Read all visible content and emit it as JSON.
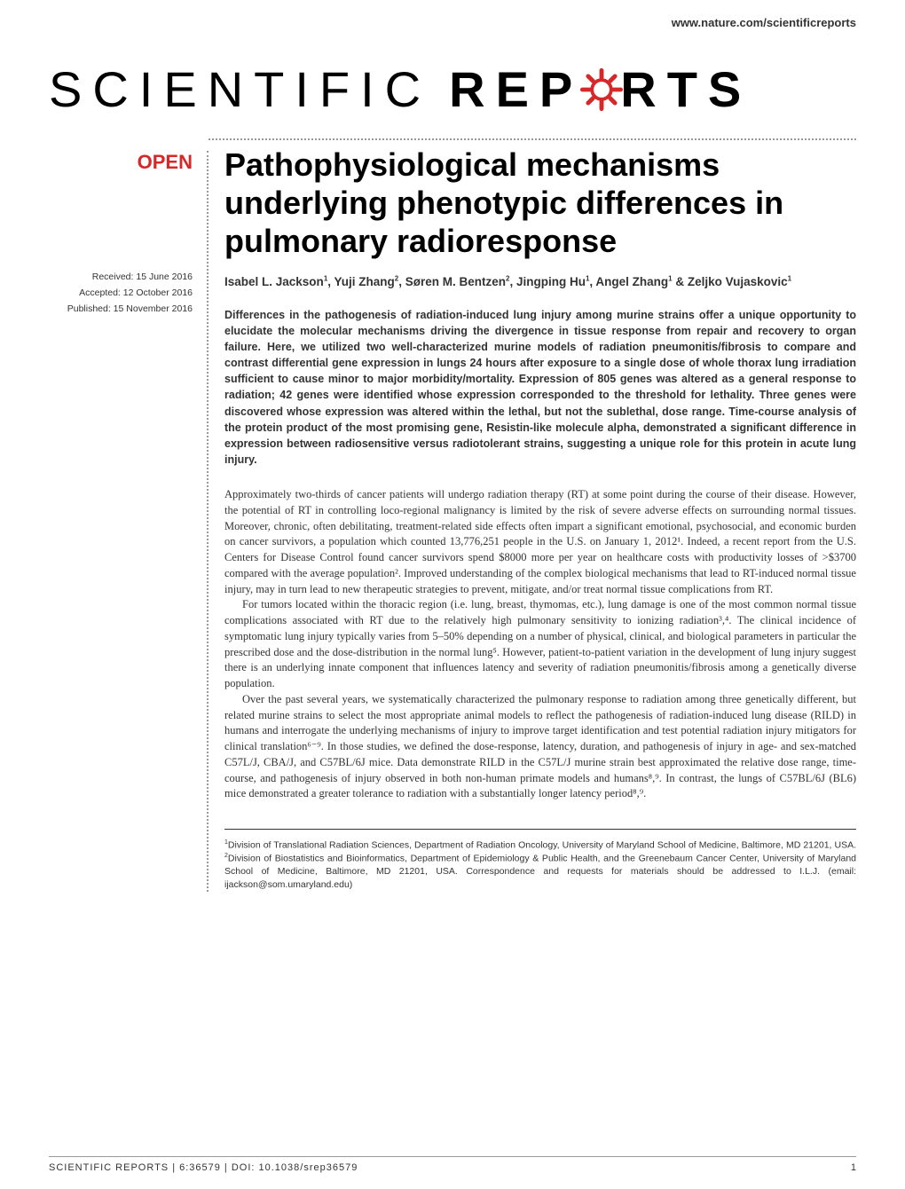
{
  "header": {
    "url": "www.nature.com/scientificreports"
  },
  "logo": {
    "part1": "SCIENTIFIC",
    "part2_before": "REP",
    "part2_after": "RTS",
    "gear_color": "#d62828"
  },
  "badge": {
    "open": "OPEN"
  },
  "dates": {
    "received": "Received: 15 June 2016",
    "accepted": "Accepted: 12 October 2016",
    "published": "Published: 15 November 2016"
  },
  "title": "Pathophysiological mechanisms underlying phenotypic differences in pulmonary radioresponse",
  "authors_html": "Isabel L. Jackson<sup>1</sup>, Yuji Zhang<sup>2</sup>, Søren M. Bentzen<sup>2</sup>, Jingping Hu<sup>1</sup>, Angel Zhang<sup>1</sup> & Zeljko Vujaskovic<sup>1</sup>",
  "abstract": "Differences in the pathogenesis of radiation-induced lung injury among murine strains offer a unique opportunity to elucidate the molecular mechanisms driving the divergence in tissue response from repair and recovery to organ failure. Here, we utilized two well-characterized murine models of radiation pneumonitis/fibrosis to compare and contrast differential gene expression in lungs 24 hours after exposure to a single dose of whole thorax lung irradiation sufficient to cause minor to major morbidity/mortality. Expression of 805 genes was altered as a general response to radiation; 42 genes were identified whose expression corresponded to the threshold for lethality. Three genes were discovered whose expression was altered within the lethal, but not the sublethal, dose range. Time-course analysis of the protein product of the most promising gene, Resistin-like molecule alpha, demonstrated a significant difference in expression between radiosensitive versus radiotolerant strains, suggesting a unique role for this protein in acute lung injury.",
  "body": {
    "p1": "Approximately two-thirds of cancer patients will undergo radiation therapy (RT) at some point during the course of their disease. However, the potential of RT in controlling loco-regional malignancy is limited by the risk of severe adverse effects on surrounding normal tissues. Moreover, chronic, often debilitating, treatment-related side effects often impart a significant emotional, psychosocial, and economic burden on cancer survivors, a population which counted 13,776,251 people in the U.S. on January 1, 2012¹. Indeed, a recent report from the U.S. Centers for Disease Control found cancer survivors spend $8000 more per year on healthcare costs with productivity losses of >$3700 compared with the average population². Improved understanding of the complex biological mechanisms that lead to RT-induced normal tissue injury, may in turn lead to new therapeutic strategies to prevent, mitigate, and/or treat normal tissue complications from RT.",
    "p2": "For tumors located within the thoracic region (i.e. lung, breast, thymomas, etc.), lung damage is one of the most common normal tissue complications associated with RT due to the relatively high pulmonary sensitivity to ionizing radiation³,⁴. The clinical incidence of symptomatic lung injury typically varies from 5–50% depending on a number of physical, clinical, and biological parameters in particular the prescribed dose and the dose-distribution in the normal lung⁵. However, patient-to-patient variation in the development of lung injury suggest there is an underlying innate component that influences latency and severity of radiation pneumonitis/fibrosis among a genetically diverse population.",
    "p3": "Over the past several years, we systematically characterized the pulmonary response to radiation among three genetically different, but related murine strains to select the most appropriate animal models to reflect the pathogenesis of radiation-induced lung disease (RILD) in humans and interrogate the underlying mechanisms of injury to improve target identification and test potential radiation injury mitigators for clinical translation⁶⁻⁹. In those studies, we defined the dose-response, latency, duration, and pathogenesis of injury in age- and sex-matched C57L/J, CBA/J, and C57BL/6J mice. Data demonstrate RILD in the C57L/J murine strain best approximated the relative dose range, time-course, and pathogenesis of injury observed in both non-human primate models and humans⁸,⁹. In contrast, the lungs of C57BL/6J (BL6) mice demonstrated a greater tolerance to radiation with a substantially longer latency period⁸,⁹."
  },
  "affiliations_html": "<sup>1</sup>Division of Translational Radiation Sciences, Department of Radiation Oncology, University of Maryland School of Medicine, Baltimore, MD 21201, USA. <sup>2</sup>Division of Biostatistics and Bioinformatics, Department of Epidemiology & Public Health, and the Greenebaum Cancer Center, University of Maryland School of Medicine, Baltimore, MD 21201, USA. Correspondence and requests for materials should be addressed to I.L.J. (email: ijackson@som.umaryland.edu)",
  "footer": {
    "citation": "SCIENTIFIC REPORTS | 6:36579 | DOI: 10.1038/srep36579",
    "page": "1"
  },
  "colors": {
    "accent": "#d62828",
    "text": "#333333",
    "background": "#ffffff"
  }
}
